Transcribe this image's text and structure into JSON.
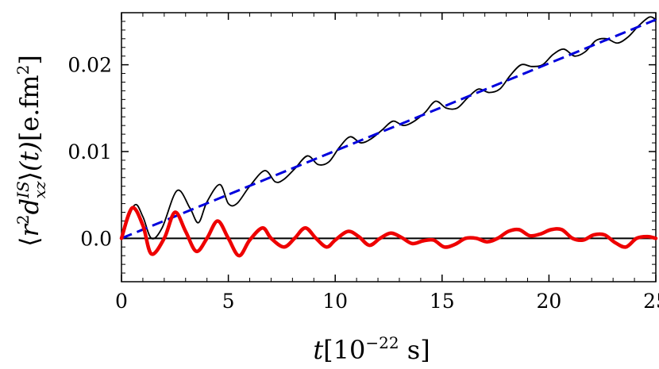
{
  "chart_data": {
    "type": "line",
    "xlabel": {
      "var": "t",
      "open": "[10",
      "exp": "−22",
      "unit": " s]"
    },
    "ylabel": {
      "lang": "⟨",
      "r": "r",
      "r_exp": "2",
      "d": "d",
      "d_sup": "IS",
      "d_sub": "xz",
      "rang": "⟩",
      "targ": "(t)",
      "unit": "[e.fm",
      "unit_exp": "2",
      "close": "]"
    },
    "xlim": [
      0,
      25
    ],
    "ylim": [
      -0.005,
      0.026
    ],
    "grid": false,
    "xticks": [
      0,
      5,
      10,
      15,
      20,
      25
    ],
    "xtick_labels": [
      "0",
      "5",
      "10",
      "15",
      "20",
      "25"
    ],
    "yticks": [
      0.0,
      0.01,
      0.02
    ],
    "ytick_labels": [
      "0.0",
      "0.01",
      "0.02"
    ],
    "series": [
      {
        "color": "#000000",
        "style": "solid-thin",
        "x": [
          0,
          0.6,
          1.0,
          1.4,
          1.9,
          2.6,
          3.2,
          3.6,
          4.0,
          4.6,
          5.0,
          5.4,
          6.0,
          6.7,
          7.2,
          7.6,
          8.1,
          8.7,
          9.2,
          9.7,
          10.2,
          10.7,
          11.2,
          11.7,
          12.2,
          12.7,
          13.2,
          13.7,
          14.2,
          14.7,
          15.2,
          15.7,
          16.2,
          16.7,
          17.2,
          17.7,
          18.2,
          18.7,
          19.2,
          19.7,
          20.2,
          20.7,
          21.2,
          21.7,
          22.2,
          22.7,
          23.2,
          23.7,
          24.2,
          24.7,
          25.0
        ],
        "y": [
          0,
          0.0038,
          0.0025,
          0.0,
          0.0012,
          0.0055,
          0.0035,
          0.0018,
          0.0042,
          0.0062,
          0.004,
          0.004,
          0.006,
          0.0078,
          0.0065,
          0.0068,
          0.008,
          0.0095,
          0.0085,
          0.0088,
          0.0105,
          0.0117,
          0.011,
          0.0115,
          0.0125,
          0.0135,
          0.013,
          0.0135,
          0.0145,
          0.0158,
          0.015,
          0.015,
          0.0162,
          0.0172,
          0.0168,
          0.0172,
          0.0188,
          0.02,
          0.0198,
          0.02,
          0.0212,
          0.0218,
          0.021,
          0.0215,
          0.0228,
          0.023,
          0.0225,
          0.0232,
          0.0245,
          0.0255,
          0.0252
        ]
      },
      {
        "color": "#0000dd",
        "style": "dashed",
        "x": [
          0,
          25
        ],
        "y": [
          0,
          0.0252
        ]
      },
      {
        "color": "#ee0000",
        "style": "solid-thick",
        "x": [
          0,
          0.5,
          1.0,
          1.4,
          2.0,
          2.5,
          3.0,
          3.5,
          4.0,
          4.5,
          5.0,
          5.5,
          6.0,
          6.6,
          7.0,
          7.6,
          8.1,
          8.6,
          9.1,
          9.6,
          10.0,
          10.6,
          11.1,
          11.6,
          12.1,
          12.6,
          13.1,
          13.6,
          14.1,
          14.6,
          15.1,
          15.6,
          16.1,
          16.6,
          17.1,
          17.6,
          18.1,
          18.6,
          19.1,
          19.6,
          20.1,
          20.6,
          21.1,
          21.6,
          22.1,
          22.6,
          23.1,
          23.6,
          24.1,
          24.6,
          25.0
        ],
        "y": [
          0,
          0.0035,
          0.0015,
          -0.0018,
          0.0,
          0.003,
          0.0008,
          -0.0015,
          0.0,
          0.002,
          0.0,
          -0.002,
          -0.0002,
          0.0012,
          0.0,
          -0.001,
          0.0,
          0.0012,
          0.0,
          -0.001,
          -0.0002,
          0.0008,
          0.0002,
          -0.0008,
          0.0,
          0.0006,
          0.0001,
          -0.0006,
          -0.0003,
          -0.0002,
          -0.001,
          -0.0007,
          0.0,
          0.0,
          -0.0004,
          0.0,
          0.0008,
          0.001,
          0.0003,
          0.0005,
          0.001,
          0.001,
          0.0,
          -0.0002,
          0.0004,
          0.0004,
          -0.0005,
          -0.001,
          0.0,
          0.0002,
          0.0
        ]
      }
    ],
    "zero_line": {
      "y": 0,
      "color": "#000000"
    }
  }
}
